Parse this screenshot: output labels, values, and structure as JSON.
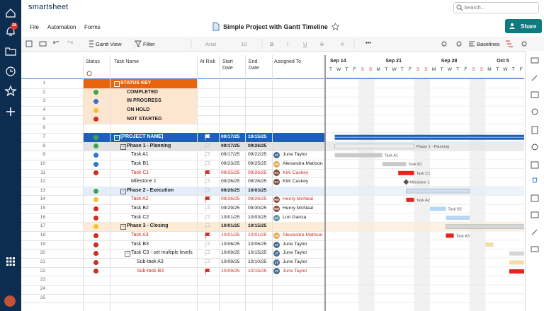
{
  "app": {
    "logo": "smartsheet",
    "search_placeholder": "Search...",
    "notification_count": "28"
  },
  "menu": [
    "File",
    "Automation",
    "Forms"
  ],
  "sheet_title": "Simple Project with Gantt Timeline",
  "share_button": "Share",
  "toolbar": {
    "view": "Gantt View",
    "filter": "Filter",
    "font": "Arial",
    "font_size": "10",
    "format": [
      "B",
      "I",
      "U",
      "S",
      "A"
    ],
    "baselines": "Baselines"
  },
  "columns": [
    "Status",
    "Task Name",
    "At Risk",
    "Start Date",
    "End Date",
    "Assigned To"
  ],
  "gantt": {
    "weeks": [
      "Sep 14",
      "Sep 21",
      "Sep 28",
      "Oct 5"
    ],
    "days": [
      "T",
      "W",
      "T",
      "F",
      "S",
      "S",
      "M",
      "T",
      "W",
      "T",
      "F",
      "S",
      "S",
      "M",
      "T",
      "W",
      "T",
      "F",
      "S",
      "S",
      "M",
      "T",
      "W",
      "T",
      "F"
    ]
  },
  "status_colors": {
    "green": "#3fa648",
    "blue": "#2c72d6",
    "yellow": "#f2c12e",
    "red": "#d22b20"
  },
  "avatar_colors": {
    "JT": "#4b6d94",
    "AM": "#e3a44a",
    "KC": "#7a4b3a",
    "HM": "#8c4f3f",
    "LG": "#5d8fa3"
  },
  "rows": [
    {
      "n": 1,
      "task": "STATUS KEY",
      "level": 0,
      "parent": true,
      "style": "key-head"
    },
    {
      "n": 2,
      "status": "green",
      "task": "COMPLETED",
      "level": 1,
      "style": "key"
    },
    {
      "n": 3,
      "status": "blue",
      "task": "IN PROGRESS",
      "level": 1,
      "style": "key"
    },
    {
      "n": 4,
      "status": "yellow",
      "task": "ON HOLD",
      "level": 1,
      "style": "key"
    },
    {
      "n": 5,
      "status": "red",
      "task": "NOT STARTED",
      "level": 1,
      "style": "key"
    },
    {
      "n": 6
    },
    {
      "n": 7,
      "status": "green",
      "task": "[PROJECT NAME]",
      "level": 0,
      "parent": true,
      "style": "project",
      "start": "09/17/25",
      "end": "10/15/25",
      "bg": "#1f5fb5",
      "bar": "#1f5fb5"
    },
    {
      "n": 8,
      "status": "green",
      "task": "Phase 1 - Planning",
      "level": 1,
      "parent": true,
      "style": "phase",
      "start": "09/17/25",
      "end": "09/26/25",
      "bg": "#e2e2e2",
      "bar": "#ededed"
    },
    {
      "n": 9,
      "status": "blue",
      "task": "Task A1",
      "level": 2,
      "start": "09/17/25",
      "end": "09/22/25",
      "assigned": {
        "name": "June Taylor",
        "initials": "JT"
      },
      "bar": "#c9c9c9"
    },
    {
      "n": 10,
      "status": "blue",
      "task": "Task B1",
      "level": 2,
      "start": "09/23/25",
      "end": "09/25/25",
      "assigned": {
        "name": "Alexandra Mattson",
        "initials": "AM"
      },
      "bar": "#c9c9c9"
    },
    {
      "n": 11,
      "status": "red",
      "task": "Task C1",
      "level": 2,
      "at_risk": true,
      "start": "09/25/25",
      "end": "09/26/25",
      "assigned": {
        "name": "Kirk Caskey",
        "initials": "KC"
      },
      "bar": "#e3251b"
    },
    {
      "n": 12,
      "task": "Milestone 1",
      "level": 2,
      "milestone": true,
      "start": "09/26/25",
      "end": "09/26/25",
      "assigned": {
        "name": "Kirk Caskey",
        "initials": "KC"
      },
      "bar": "#555555"
    },
    {
      "n": 13,
      "status": "green",
      "task": "Phase 2 - Execution",
      "level": 1,
      "parent": true,
      "style": "phase",
      "start": "09/26/25",
      "end": "10/03/25",
      "bg": "#e4eefa",
      "bar": "#cfdff0"
    },
    {
      "n": 14,
      "status": "yellow",
      "task": "Task A2",
      "level": 2,
      "at_risk": true,
      "start": "09/26/25",
      "end": "09/26/25",
      "assigned": {
        "name": "Henry McNeal",
        "initials": "HM"
      },
      "bar": "#e3251b"
    },
    {
      "n": 15,
      "status": "red",
      "task": "Task B2",
      "level": 2,
      "start": "09/29/25",
      "end": "09/30/25",
      "assigned": {
        "name": "Henry McNeal",
        "initials": "HM"
      },
      "bar": "#b7d6f3"
    },
    {
      "n": 16,
      "status": "red",
      "task": "Task C2",
      "level": 2,
      "start": "10/01/25",
      "end": "10/03/25",
      "assigned": {
        "name": "Lori Garcia",
        "initials": "LG"
      },
      "bar": "#b7d6f3"
    },
    {
      "n": 17,
      "status": "yellow",
      "task": "Phase 3 - Closing",
      "level": 1,
      "parent": true,
      "style": "phase",
      "start": "10/01/25",
      "end": "10/15/25",
      "bg": "#fdebd5",
      "bar": "#d6d6d6"
    },
    {
      "n": 18,
      "status": "red",
      "task": "Task A3",
      "level": 2,
      "at_risk": true,
      "start": "10/01/25",
      "end": "10/01/25",
      "assigned": {
        "name": "Alexandra Mattson",
        "initials": "AM"
      },
      "bar": "#e3251b"
    },
    {
      "n": 19,
      "status": "red",
      "task": "Task B3",
      "level": 2,
      "start": "10/06/25",
      "end": "10/06/25",
      "assigned": {
        "name": "June Taylor",
        "initials": "JT"
      },
      "bar": "#f4dca8"
    },
    {
      "n": 20,
      "status": "red",
      "task": "Task C3 - set multiple levels",
      "level": 2,
      "parent": true,
      "start": "10/09/25",
      "end": "10/15/25",
      "assigned": {
        "name": "June Taylor",
        "initials": "JT"
      },
      "bar": "#d6d6d6"
    },
    {
      "n": 21,
      "status": "red",
      "task": "Sub-task A3",
      "level": 3,
      "start": "10/09/25",
      "end": "10/10/25",
      "assigned": {
        "name": "June Taylor",
        "initials": "JT"
      },
      "bar": "#f4dca8"
    },
    {
      "n": 22,
      "status": "red",
      "task": "Sub-task B3",
      "level": 3,
      "at_risk": true,
      "start": "10/09/25",
      "end": "10/15/25",
      "assigned": {
        "name": "June Taylor",
        "initials": "JT"
      },
      "bar": "#e3251b"
    },
    {
      "n": 23
    },
    {
      "n": 24
    },
    {
      "n": 25
    }
  ]
}
